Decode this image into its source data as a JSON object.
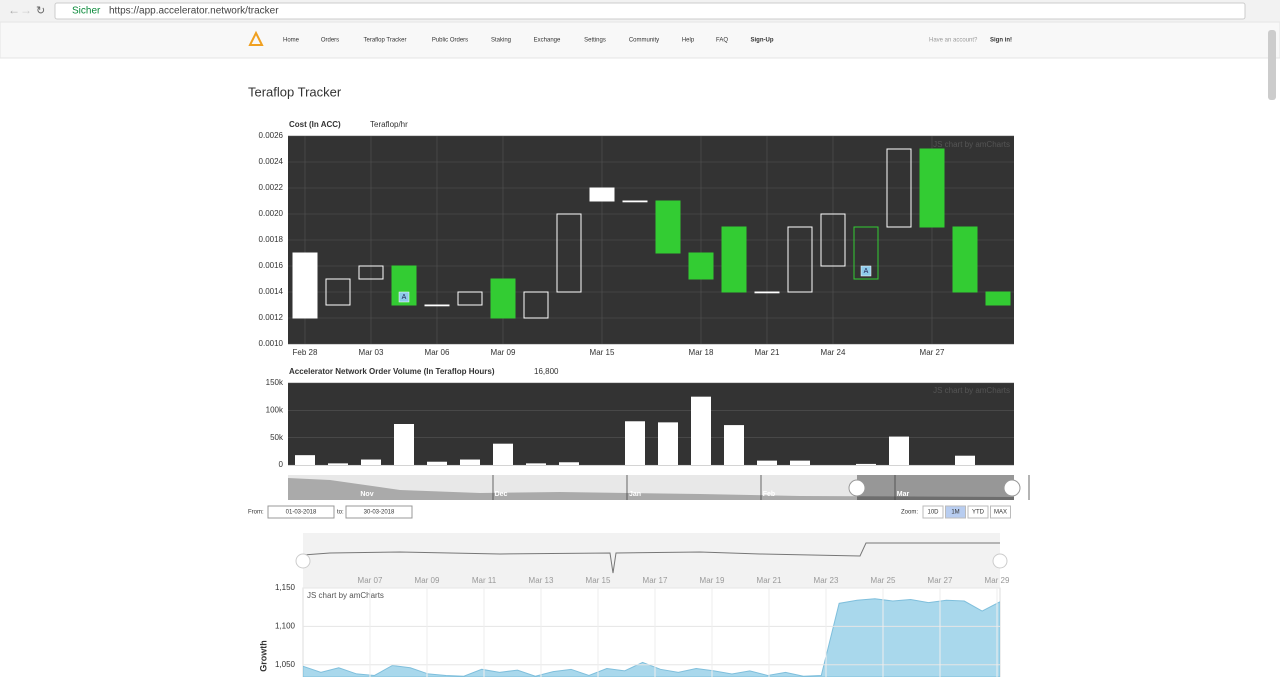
{
  "browser": {
    "secure": "Sicher",
    "url": "https://app.accelerator.network/tracker"
  },
  "nav": {
    "items": [
      "Home",
      "Orders",
      "Teraflop Tracker",
      "Public Orders",
      "Staking",
      "Exchange",
      "Settings",
      "Community",
      "Help",
      "FAQ",
      "Sign-Up"
    ],
    "account_prompt": "Have an account?",
    "sign_in": "Sign in!"
  },
  "page_title": "Teraflop Tracker",
  "candle_chart": {
    "type": "candlestick",
    "title": "Cost (In ACC)",
    "unit": "Teraflop/hr",
    "credit": "JS chart by amCharts",
    "categories": [
      "Feb 28",
      null,
      "Mar 03",
      null,
      "Mar 06",
      null,
      "Mar 09",
      null,
      null,
      "Mar 15",
      null,
      null,
      "Mar 18",
      null,
      "Mar 21",
      null,
      "Mar 24",
      null,
      null,
      "Mar 27",
      null,
      null
    ],
    "open": [
      0.0017,
      0.0015,
      0.0016,
      0.0016,
      0.0013,
      0.0014,
      0.0015,
      0.0014,
      0.002,
      0.0022,
      0.0021,
      0.0021,
      0.0017,
      0.0019,
      0.0014,
      0.0019,
      0.002,
      0.0019,
      0.0025,
      0.0025,
      0.0019,
      0.0014
    ],
    "close": [
      0.0012,
      0.0013,
      0.0015,
      0.0013,
      0.0013,
      0.0013,
      0.0012,
      0.0012,
      0.0014,
      0.0021,
      0.0021,
      0.0017,
      0.0015,
      0.0014,
      0.0014,
      0.0014,
      0.0016,
      0.0015,
      0.0019,
      0.0019,
      0.0014,
      0.0013
    ],
    "styles": [
      "white",
      "white-outline",
      "white-outline",
      "green",
      "white-outline",
      "white-outline",
      "green",
      "white-outline",
      "white-outline",
      "white",
      "white-outline",
      "green",
      "green",
      "green",
      "white-outline",
      "white-outline",
      "white-outline",
      "green-outline",
      "white-outline",
      "green",
      "green",
      "green"
    ],
    "markers": [
      {
        "index": 3,
        "label": "A"
      },
      {
        "index": 17,
        "label": "A"
      }
    ],
    "ylim": [
      0.001,
      0.0026
    ],
    "yticks": [
      {
        "value": 0.001,
        "label": "0.0010"
      },
      {
        "value": 0.0012,
        "label": "0.0012"
      },
      {
        "value": 0.0014,
        "label": "0.0014"
      },
      {
        "value": 0.0016,
        "label": "0.0016"
      },
      {
        "value": 0.0018,
        "label": "0.0018"
      },
      {
        "value": 0.002,
        "label": "0.0020"
      },
      {
        "value": 0.0022,
        "label": "0.0022"
      },
      {
        "value": 0.0024,
        "label": "0.0024"
      },
      {
        "value": 0.0026,
        "label": "0.0026"
      }
    ],
    "grid": true
  },
  "volume_chart": {
    "type": "bar",
    "title": "Accelerator Network Order Volume (In Teraflop Hours)",
    "latest": "16,800",
    "credit": "JS chart by amCharts",
    "values": [
      18000,
      3000,
      10000,
      75000,
      6000,
      10000,
      39000,
      3000,
      5000,
      0,
      80000,
      78000,
      125000,
      73000,
      8000,
      8000,
      0,
      2000,
      52000,
      0,
      17000,
      0
    ],
    "color": "#ffffff",
    "ylim": [
      0,
      150000
    ],
    "yticks": [
      0,
      {
        "value": 50000,
        "label": "50k"
      },
      {
        "value": 100000,
        "label": "100k"
      },
      {
        "value": 150000,
        "label": "150k"
      }
    ]
  },
  "navigator": {
    "labels": [
      "Nov",
      "Dec",
      "Jan",
      "Feb",
      "Mar"
    ]
  },
  "range": {
    "from_label": "From:",
    "from": "01-03-2018",
    "to_label": "to:",
    "to": "30-03-2018",
    "zoom_label": "Zoom:",
    "zoom": [
      "10D",
      "1M",
      "YTD",
      "MAX"
    ],
    "active_zoom": 1
  },
  "growth_chart": {
    "type": "area",
    "y_label": "Growth",
    "credit": "JS chart by amCharts",
    "color": "#a9d8ec",
    "scroll_labels": [
      "Mar 07",
      "Mar 09",
      "Mar 11",
      "Mar 13",
      "Mar 15",
      "Mar 17",
      "Mar 19",
      "Mar 21",
      "Mar 23",
      "Mar 25",
      "Mar 27",
      "Mar 29"
    ],
    "values": [
      1048,
      1040,
      1046,
      1038,
      1036,
      1049,
      1046,
      1038,
      1036,
      1035,
      1044,
      1040,
      1043,
      1035,
      1041,
      1044,
      1036,
      1045,
      1042,
      1053,
      1044,
      1040,
      1045,
      1042,
      1038,
      1042,
      1036,
      1040,
      1035,
      1036,
      1130,
      1134,
      1136,
      1133,
      1135,
      1131,
      1134,
      1133,
      1120,
      1132
    ],
    "ylim": [
      1034,
      1150
    ],
    "yticks": [
      {
        "value": 1050,
        "label": "1,050"
      },
      {
        "value": 1100,
        "label": "1,100"
      },
      {
        "value": 1150,
        "label": "1,150"
      }
    ]
  }
}
